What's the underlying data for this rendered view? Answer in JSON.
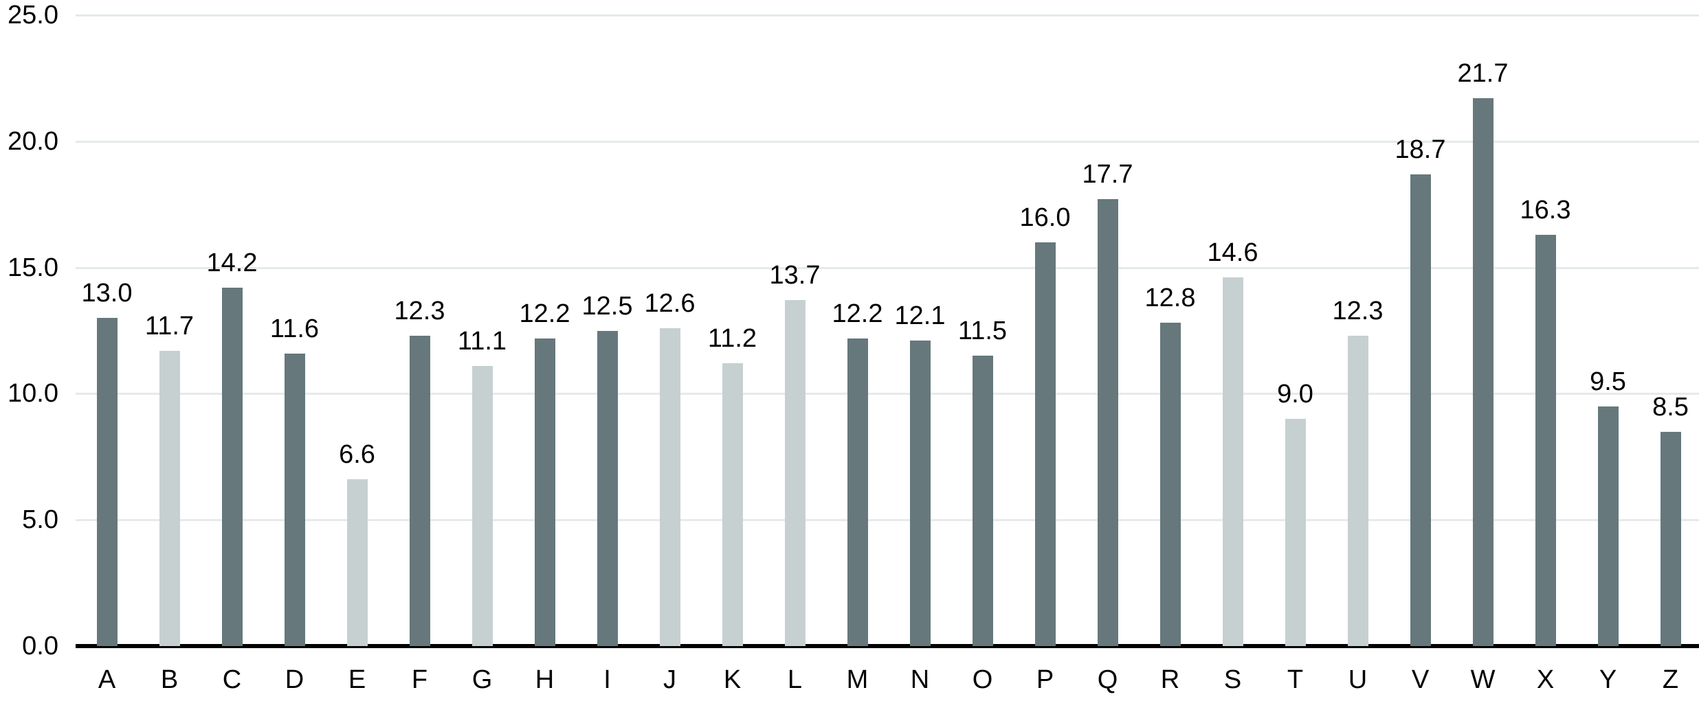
{
  "chart_data": {
    "type": "bar",
    "title": "",
    "xlabel": "",
    "ylabel": "",
    "categories": [
      "A",
      "B",
      "C",
      "D",
      "E",
      "F",
      "G",
      "H",
      "I",
      "J",
      "K",
      "L",
      "M",
      "N",
      "O",
      "P",
      "Q",
      "R",
      "S",
      "T",
      "U",
      "V",
      "W",
      "X",
      "Y",
      "Z"
    ],
    "values": [
      13.0,
      11.7,
      14.2,
      11.6,
      6.6,
      12.3,
      11.1,
      12.2,
      12.5,
      12.6,
      11.2,
      13.7,
      12.2,
      12.1,
      11.5,
      16.0,
      17.7,
      12.8,
      14.6,
      9.0,
      12.3,
      18.7,
      21.7,
      16.3,
      9.5,
      8.5
    ],
    "bar_shades": [
      "dark",
      "light",
      "dark",
      "dark",
      "light",
      "dark",
      "light",
      "dark",
      "dark",
      "light",
      "light",
      "light",
      "dark",
      "dark",
      "dark",
      "dark",
      "dark",
      "dark",
      "light",
      "light",
      "light",
      "dark",
      "dark",
      "dark",
      "dark",
      "dark"
    ],
    "value_labels": [
      "13.0",
      "11.7",
      "14.2",
      "11.6",
      "6.6",
      "12.3",
      "11.1",
      "12.2",
      "12.5",
      "12.6",
      "11.2",
      "13.7",
      "12.2",
      "12.1",
      "11.5",
      "16.0",
      "17.7",
      "12.8",
      "14.6",
      "9.0",
      "12.3",
      "18.7",
      "21.7",
      "16.3",
      "9.5",
      "8.5"
    ],
    "ylim": [
      0,
      25
    ],
    "y_ticks": [
      "0.0",
      "5.0",
      "10.0",
      "15.0",
      "20.0",
      "25.0"
    ],
    "grid": "horizontal",
    "legend": "none",
    "colors": {
      "dark_bar": "#66787b",
      "light_bar": "#c7d0d1",
      "gridline": "#e5eaea",
      "axis_line": "#000000",
      "text": "#000000",
      "background": "#ffffff"
    }
  }
}
